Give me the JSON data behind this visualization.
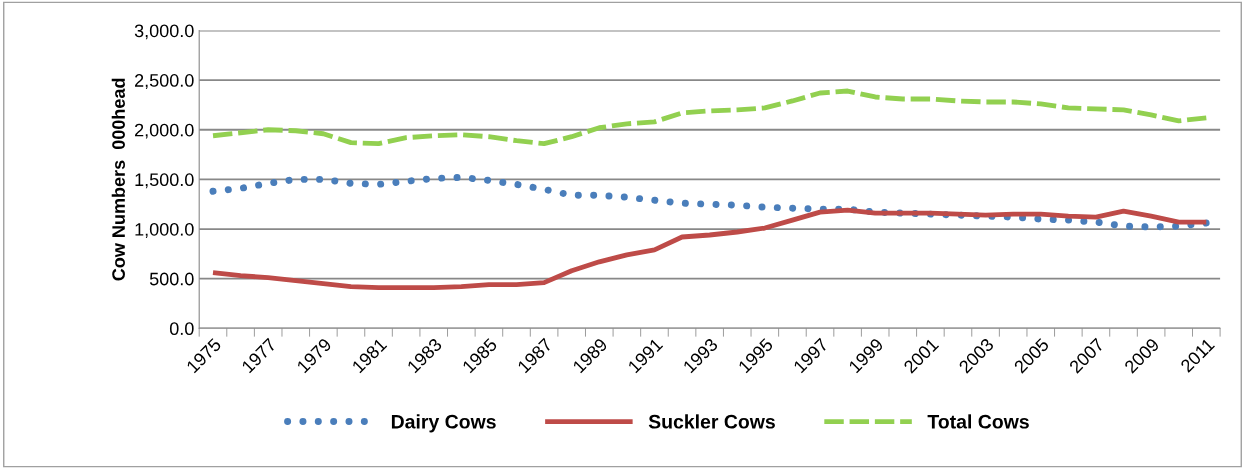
{
  "chart_data": {
    "type": "line",
    "ylabel": "Cow Numbers  000head",
    "categories": [
      "1975",
      null,
      "1977",
      null,
      "1979",
      null,
      "1981",
      null,
      "1983",
      null,
      "1985",
      null,
      "1987",
      null,
      "1989",
      null,
      "1991",
      null,
      "1993",
      null,
      "1995",
      null,
      "1997",
      null,
      "1999",
      null,
      "2001",
      null,
      "2003",
      null,
      "2005",
      null,
      "2007",
      null,
      "2009",
      null,
      "2011"
    ],
    "series": [
      {
        "name": "Dairy Cows",
        "color": "#4a7ebb",
        "line_style": "dotted",
        "values": [
          1380,
          1410,
          1460,
          1500,
          1500,
          1460,
          1450,
          1480,
          1510,
          1520,
          1490,
          1450,
          1400,
          1340,
          1340,
          1320,
          1290,
          1260,
          1250,
          1240,
          1220,
          1210,
          1200,
          1200,
          1170,
          1160,
          1150,
          1140,
          1130,
          1120,
          1100,
          1090,
          1070,
          1030,
          1020,
          1030,
          1060
        ]
      },
      {
        "name": "Suckler Cows",
        "color": "#be4b48",
        "line_style": "solid",
        "values": [
          560,
          530,
          510,
          480,
          450,
          420,
          410,
          410,
          410,
          420,
          440,
          440,
          460,
          580,
          670,
          740,
          790,
          920,
          940,
          970,
          1010,
          1090,
          1170,
          1190,
          1160,
          1160,
          1160,
          1150,
          1140,
          1150,
          1150,
          1130,
          1120,
          1180,
          1130,
          1070,
          1070
        ]
      },
      {
        "name": "Total Cows",
        "color": "#92d050",
        "line_style": "dashed",
        "values": [
          1940,
          1970,
          2000,
          1990,
          1960,
          1870,
          1860,
          1920,
          1940,
          1950,
          1930,
          1890,
          1860,
          1930,
          2020,
          2060,
          2080,
          2170,
          2190,
          2200,
          2220,
          2290,
          2370,
          2390,
          2330,
          2310,
          2310,
          2290,
          2280,
          2280,
          2260,
          2220,
          2210,
          2200,
          2150,
          2090,
          2120
        ]
      }
    ],
    "ylim": [
      0,
      3000
    ],
    "yticks": [
      {
        "value": 0,
        "label": "0.0"
      },
      {
        "value": 500,
        "label": "500.0"
      },
      {
        "value": 1000,
        "label": "1,000.0"
      },
      {
        "value": 1500,
        "label": "1,500.0"
      },
      {
        "value": 2000,
        "label": "2,000.0"
      },
      {
        "value": 2500,
        "label": "2,500.0"
      },
      {
        "value": 3000,
        "label": "3,000.0"
      }
    ],
    "grid": "y",
    "legend": "bottom",
    "marker": "none"
  }
}
